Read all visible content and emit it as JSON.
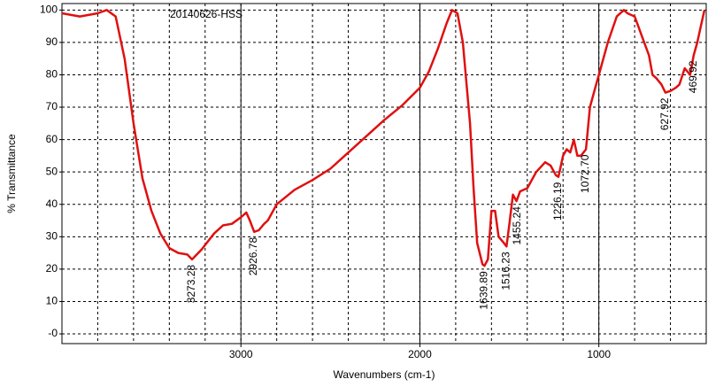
{
  "chart_data": {
    "type": "line",
    "title": "20140626-HSS",
    "x_label": "Wavenumbers (cm-1)",
    "y_label": "% Transmittance",
    "xlim": [
      4000,
      400
    ],
    "ylim": [
      -3,
      102
    ],
    "xticks": [
      3000,
      2000,
      1000
    ],
    "xgrid": [
      3800,
      3600,
      3400,
      3200,
      3000,
      2800,
      2600,
      2400,
      2200,
      2000,
      1800,
      1600,
      1400,
      1200,
      1000,
      800,
      600
    ],
    "yticks": [
      {
        "value": 0,
        "label": "-0"
      },
      10,
      20,
      30,
      40,
      50,
      60,
      70,
      80,
      90,
      100
    ],
    "grid": true,
    "series": [
      {
        "name": "20140626-HSS",
        "color": "#e01010",
        "x": [
          4000,
          3900,
          3800,
          3750,
          3700,
          3650,
          3600,
          3550,
          3500,
          3450,
          3400,
          3350,
          3300,
          3273,
          3220,
          3150,
          3100,
          3050,
          3000,
          2970,
          2950,
          2926,
          2900,
          2870,
          2850,
          2800,
          2700,
          2600,
          2500,
          2400,
          2300,
          2200,
          2100,
          2000,
          1950,
          1900,
          1850,
          1820,
          1790,
          1760,
          1720,
          1700,
          1680,
          1650,
          1639,
          1620,
          1600,
          1580,
          1560,
          1530,
          1516,
          1500,
          1480,
          1460,
          1440,
          1400,
          1350,
          1300,
          1270,
          1240,
          1226,
          1200,
          1180,
          1160,
          1140,
          1120,
          1100,
          1072,
          1050,
          1020,
          1000,
          950,
          900,
          860,
          840,
          800,
          780,
          760,
          720,
          700,
          680,
          650,
          628,
          600,
          570,
          550,
          520,
          490,
          470,
          450,
          430,
          410
        ],
        "values": [
          99,
          98,
          99,
          100,
          98,
          85,
          65,
          48,
          38,
          31,
          26.5,
          25,
          24.5,
          23,
          26,
          31,
          33.5,
          34,
          36,
          37.5,
          35,
          31.5,
          32,
          34,
          35,
          40,
          44.5,
          47.5,
          51,
          56,
          61,
          66,
          70.5,
          76,
          81,
          88,
          96,
          100,
          99,
          90,
          65,
          45,
          28,
          21.5,
          21,
          23,
          38,
          38,
          30,
          28,
          27,
          34,
          43,
          41,
          44,
          45,
          50,
          53,
          52,
          49,
          48.5,
          55,
          57,
          56,
          60,
          55,
          55,
          57,
          70,
          76,
          80,
          90,
          98,
          100,
          99,
          98,
          95,
          92,
          86,
          80,
          79,
          77,
          74.5,
          75,
          76,
          77,
          82,
          80,
          86,
          90,
          95,
          100
        ]
      }
    ],
    "peaks": [
      {
        "x": 3273.28,
        "y": 23,
        "label": "3273.28"
      },
      {
        "x": 2926.78,
        "y": 31.5,
        "label": "2926.78"
      },
      {
        "x": 1639.89,
        "y": 21,
        "label": "1639.89"
      },
      {
        "x": 1516.23,
        "y": 27,
        "label": "1516.23"
      },
      {
        "x": 1455.24,
        "y": 41,
        "label": "1455.24"
      },
      {
        "x": 1226.19,
        "y": 48.5,
        "label": "1226.19"
      },
      {
        "x": 1072.7,
        "y": 57,
        "label": "1072.70"
      },
      {
        "x": 627.92,
        "y": 74.5,
        "label": "627.92"
      },
      {
        "x": 469.92,
        "y": 86,
        "label": "469.92"
      }
    ]
  }
}
